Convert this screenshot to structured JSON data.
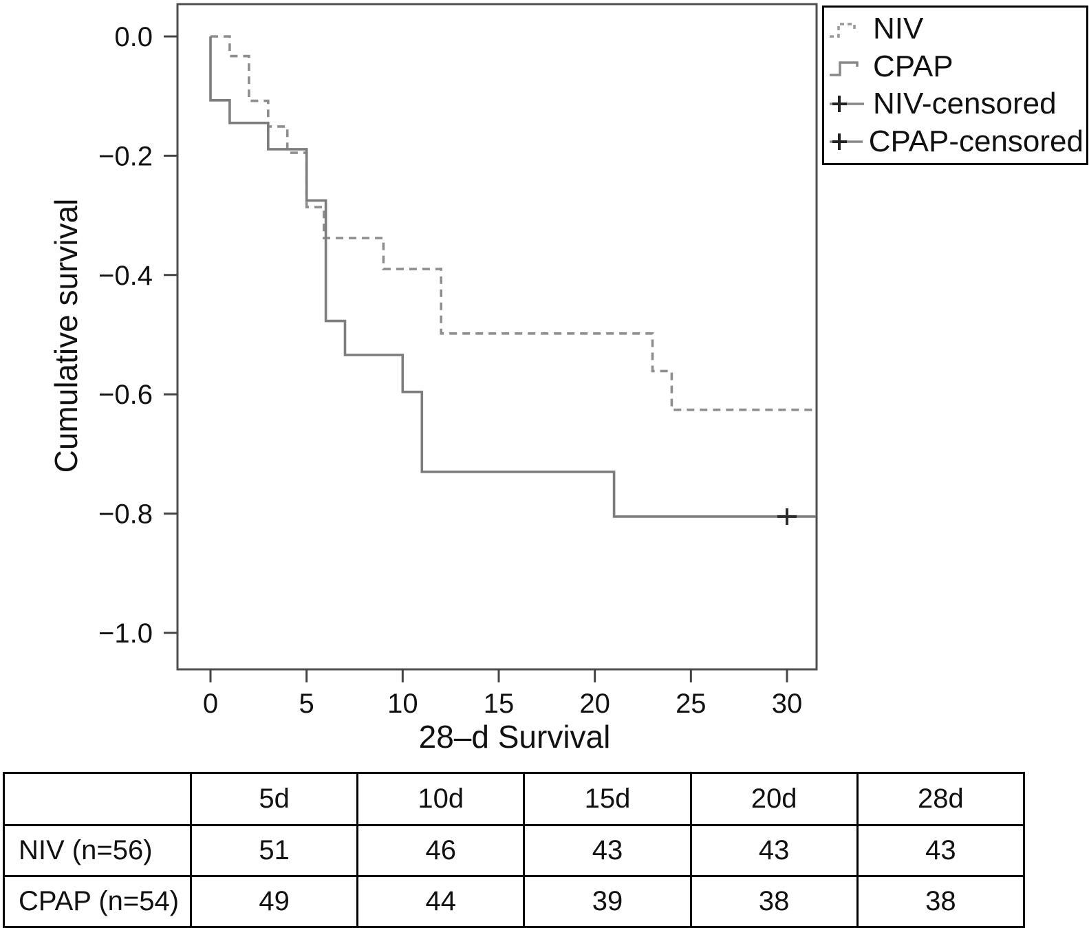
{
  "chart": {
    "y_axis": {
      "title": "Cumulative survival",
      "ticks": [
        {
          "label": "0.0",
          "value": 0
        },
        {
          "label": "−0.2",
          "value": -0.2
        },
        {
          "label": "−0.4",
          "value": -0.4
        },
        {
          "label": "−0.6",
          "value": -0.6
        },
        {
          "label": "−0.8",
          "value": -0.8
        },
        {
          "label": "−1.0",
          "value": -1.0
        }
      ]
    },
    "x_axis": {
      "title": "28–d Survival",
      "ticks": [
        {
          "label": "0",
          "value": 0
        },
        {
          "label": "5",
          "value": 5
        },
        {
          "label": "10",
          "value": 10
        },
        {
          "label": "15",
          "value": 15
        },
        {
          "label": "20",
          "value": 20
        },
        {
          "label": "25",
          "value": 25
        },
        {
          "label": "30",
          "value": 30
        }
      ]
    },
    "legend": {
      "items": [
        {
          "id": "niv",
          "label": "NIV"
        },
        {
          "id": "cpap",
          "label": "CPAP"
        },
        {
          "id": "niv-censored",
          "label": "NIV-censored"
        },
        {
          "id": "cpap-censored",
          "label": "CPAP-censored"
        }
      ]
    }
  },
  "chart_data": {
    "type": "line",
    "subtype": "kaplan-meier-step",
    "title": "",
    "xlabel": "28–d Survival",
    "ylabel": "Cumulative survival",
    "xlim": [
      0,
      31.5
    ],
    "ylim": [
      0,
      -1.0
    ],
    "grid": false,
    "legend_position": "outside-top-right",
    "series": [
      {
        "name": "NIV",
        "style": "dashed",
        "color": "#8e8e8e",
        "points": [
          [
            0,
            0
          ],
          [
            1,
            0
          ],
          [
            1,
            -0.033
          ],
          [
            2,
            -0.033
          ],
          [
            2,
            -0.108
          ],
          [
            3,
            -0.108
          ],
          [
            3,
            -0.151
          ],
          [
            4,
            -0.151
          ],
          [
            4,
            -0.195
          ],
          [
            5,
            -0.195
          ],
          [
            5,
            -0.286
          ],
          [
            5.9,
            -0.286
          ],
          [
            5.9,
            -0.338
          ],
          [
            9,
            -0.338
          ],
          [
            9,
            -0.39
          ],
          [
            12,
            -0.39
          ],
          [
            12,
            -0.498
          ],
          [
            23,
            -0.498
          ],
          [
            23,
            -0.561
          ],
          [
            24,
            -0.561
          ],
          [
            24,
            -0.626
          ],
          [
            31.5,
            -0.626
          ]
        ]
      },
      {
        "name": "CPAP",
        "style": "solid",
        "color": "#7d7d7d",
        "points": [
          [
            0,
            0
          ],
          [
            0,
            -0.107
          ],
          [
            1,
            -0.107
          ],
          [
            1,
            -0.145
          ],
          [
            3,
            -0.145
          ],
          [
            3,
            -0.189
          ],
          [
            5,
            -0.189
          ],
          [
            5,
            -0.275
          ],
          [
            6,
            -0.275
          ],
          [
            6,
            -0.477
          ],
          [
            7,
            -0.477
          ],
          [
            7,
            -0.534
          ],
          [
            10,
            -0.534
          ],
          [
            10,
            -0.596
          ],
          [
            11,
            -0.596
          ],
          [
            11,
            -0.73
          ],
          [
            21,
            -0.73
          ],
          [
            21,
            -0.805
          ],
          [
            31.5,
            -0.805
          ]
        ]
      }
    ],
    "censored": [
      {
        "series": "CPAP",
        "x": 30,
        "y": -0.805,
        "marker": "+"
      }
    ]
  },
  "risk_table": {
    "columns": [
      "",
      "5d",
      "10d",
      "15d",
      "20d",
      "28d"
    ],
    "rows": [
      {
        "label": "NIV (n=56)",
        "values": [
          "51",
          "46",
          "43",
          "43",
          "43"
        ]
      },
      {
        "label": "CPAP (n=54)",
        "values": [
          "49",
          "44",
          "39",
          "38",
          "38"
        ]
      }
    ]
  },
  "colors": {
    "frame": "#4e4e4e",
    "tick": "#444444",
    "censor_mark": "#2b2b2b",
    "border": "#000000",
    "text": "#111111"
  }
}
